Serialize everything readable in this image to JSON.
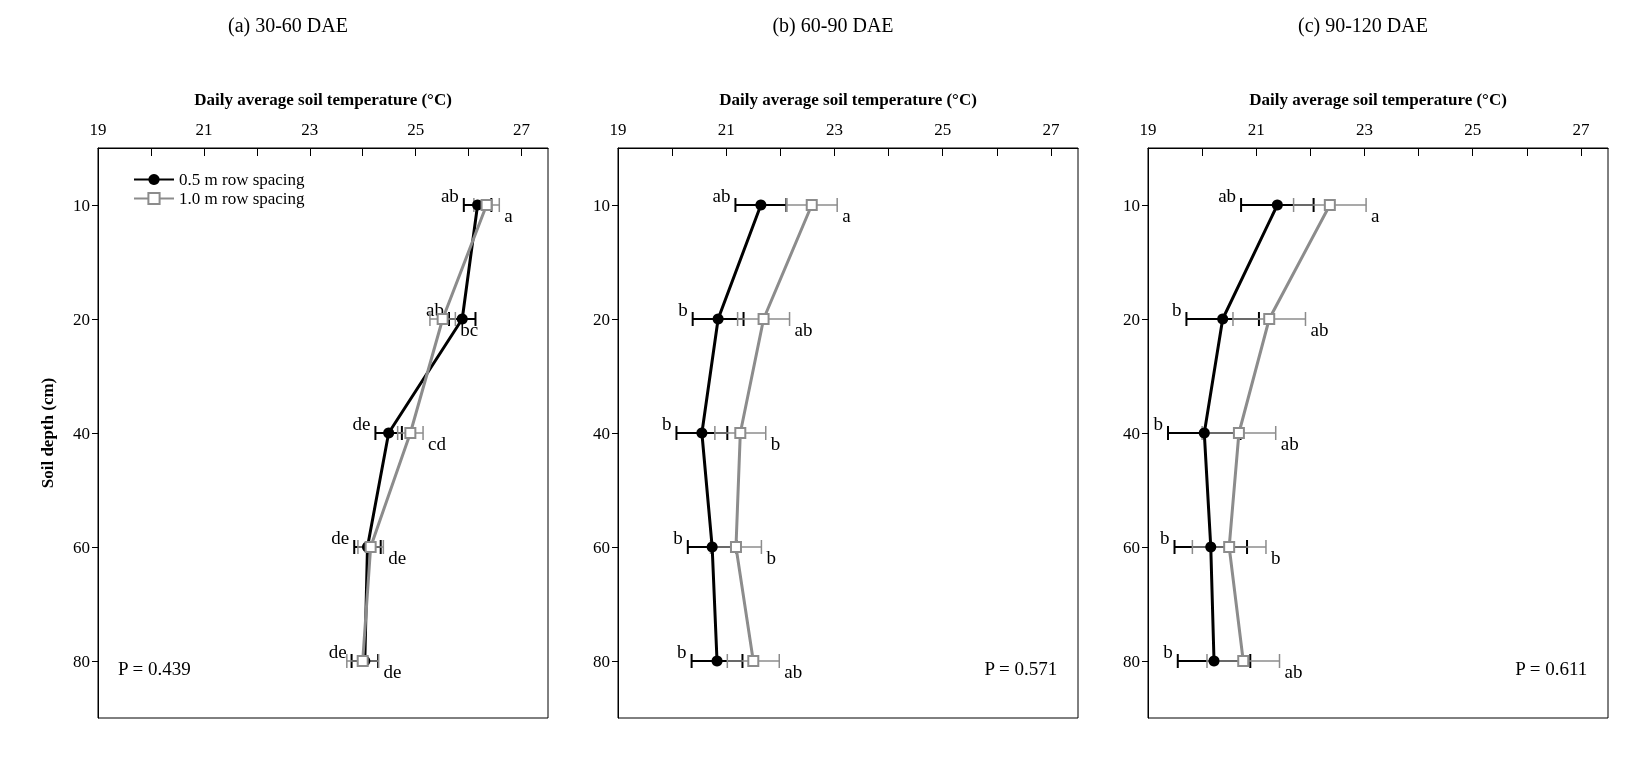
{
  "chart_data": [
    {
      "type": "line",
      "orientation": "horizontal",
      "title": "(a) 30-60 DAE",
      "xlabel": "Daily average soil temperature (°C)",
      "ylabel": "Soil depth (cm)",
      "categories": [
        "10",
        "20",
        "40",
        "60",
        "80"
      ],
      "xlim": [
        19,
        27.5
      ],
      "xticks": [
        19,
        {
          "value": 20,
          "label": null
        },
        21,
        {
          "value": 22,
          "label": null
        },
        23,
        {
          "value": 24,
          "label": null
        },
        25,
        {
          "value": 26,
          "label": null
        },
        27
      ],
      "legend": "top left",
      "grid": false,
      "series": [
        {
          "name": "0.5 m row spacing",
          "color": "#000000",
          "marker": "circle",
          "values": [
            26.17,
            25.88,
            24.49,
            24.09,
            24.04
          ],
          "errors": [
            0.26,
            0.25,
            0.25,
            0.25,
            0.25
          ],
          "value_labels": [
            "ab",
            "ab",
            "de",
            "de",
            "de"
          ]
        },
        {
          "name": "1.0 m row spacing",
          "color": "#8c8c8c",
          "marker": "square",
          "values": [
            26.34,
            25.51,
            24.9,
            24.15,
            24.0
          ],
          "errors": [
            0.24,
            0.24,
            0.24,
            0.24,
            0.3
          ],
          "value_labels": [
            "a",
            "bc",
            "cd",
            "de",
            "de"
          ]
        }
      ],
      "annotations": [
        "P = 0.439"
      ]
    },
    {
      "type": "line",
      "orientation": "horizontal",
      "title": "(b) 60-90 DAE",
      "xlabel": "Daily average soil temperature (°C)",
      "categories": [
        "10",
        "20",
        "40",
        "60",
        "80"
      ],
      "xlim": [
        19,
        27.5
      ],
      "xticks": [
        19,
        {
          "value": 20,
          "label": null
        },
        21,
        {
          "value": 22,
          "label": null
        },
        23,
        {
          "value": 24,
          "label": null
        },
        25,
        {
          "value": 26,
          "label": null
        },
        27
      ],
      "legend": false,
      "grid": false,
      "series": [
        {
          "color": "#000000",
          "marker": "circle",
          "values": [
            21.64,
            20.85,
            20.55,
            20.74,
            20.83
          ],
          "errors": [
            0.47,
            0.47,
            0.47,
            0.45,
            0.47
          ],
          "value_labels": [
            "ab",
            "b",
            "b",
            "b",
            "b"
          ]
        },
        {
          "color": "#8c8c8c",
          "marker": "square",
          "values": [
            22.58,
            21.69,
            21.26,
            21.18,
            21.5
          ],
          "errors": [
            0.47,
            0.48,
            0.47,
            0.47,
            0.48
          ],
          "value_labels": [
            "a",
            "ab",
            "b",
            "b",
            "ab"
          ]
        }
      ],
      "annotations": [
        "P = 0.571"
      ]
    },
    {
      "type": "line",
      "orientation": "horizontal",
      "title": "(c) 90-120 DAE",
      "xlabel": "Daily average soil temperature (°C)",
      "categories": [
        "10",
        "20",
        "40",
        "60",
        "80"
      ],
      "xlim": [
        19,
        27.5
      ],
      "xticks": [
        19,
        {
          "value": 20,
          "label": null
        },
        21,
        {
          "value": 22,
          "label": null
        },
        23,
        {
          "value": 24,
          "label": null
        },
        25,
        {
          "value": 26,
          "label": null
        },
        27
      ],
      "legend": false,
      "grid": false,
      "series": [
        {
          "color": "#000000",
          "marker": "circle",
          "values": [
            21.39,
            20.38,
            20.04,
            20.16,
            20.22
          ],
          "errors": [
            0.67,
            0.67,
            0.67,
            0.67,
            0.67
          ],
          "value_labels": [
            "ab",
            "b",
            "b",
            "b",
            "b"
          ]
        },
        {
          "color": "#8c8c8c",
          "marker": "square",
          "values": [
            22.36,
            21.24,
            20.68,
            20.5,
            20.76
          ],
          "errors": [
            0.67,
            0.67,
            0.68,
            0.68,
            0.67
          ],
          "value_labels": [
            "a",
            "ab",
            "ab",
            "b",
            "ab"
          ]
        }
      ],
      "annotations": [
        "P = 0.611"
      ]
    }
  ]
}
